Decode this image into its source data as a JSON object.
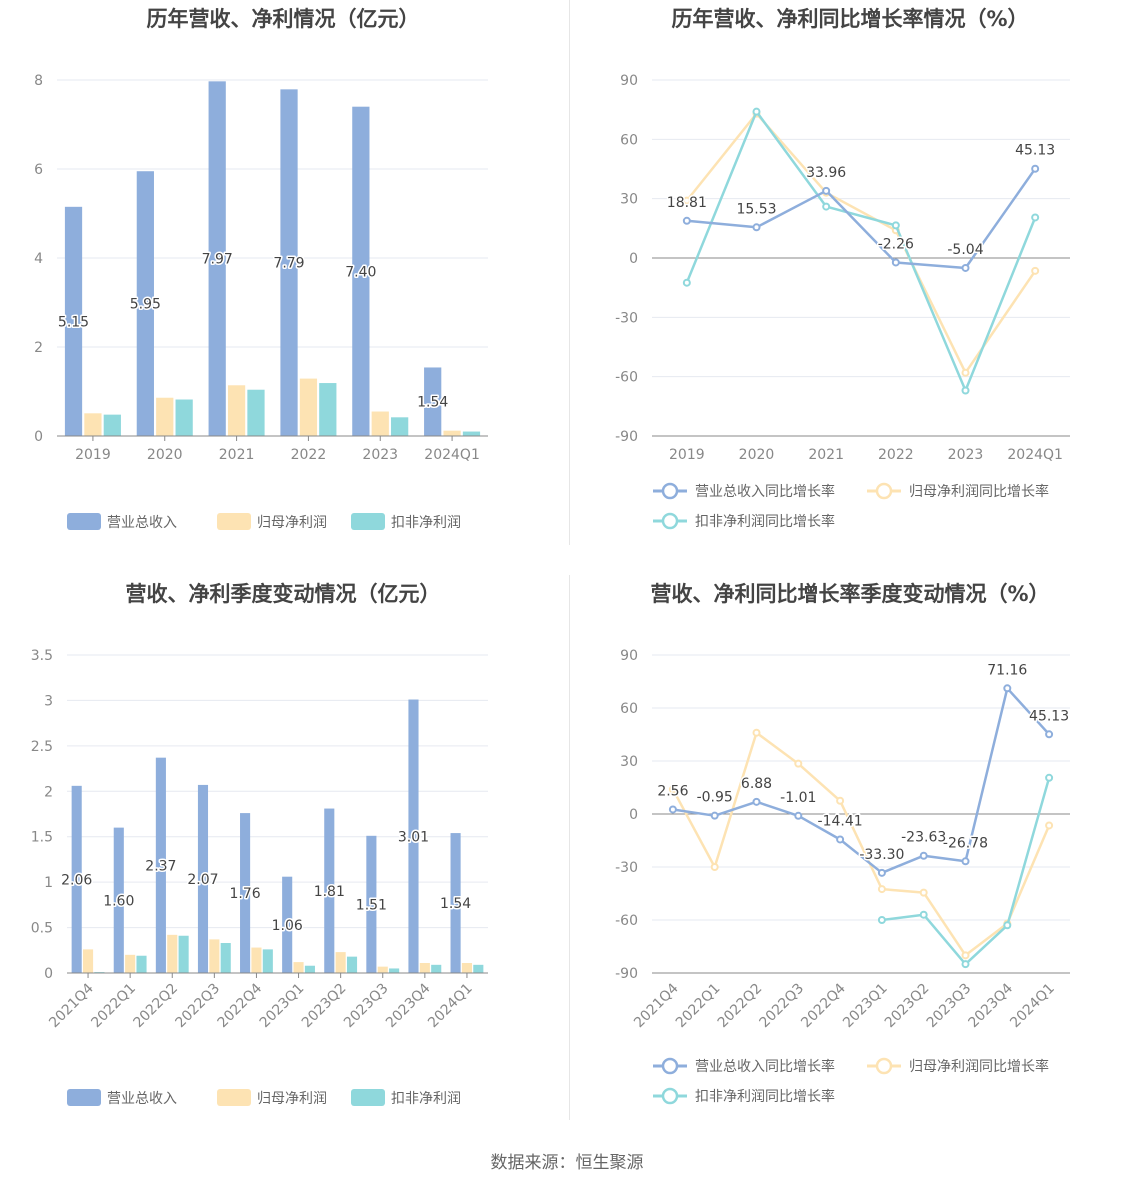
{
  "footer": "数据来源：恒生聚源",
  "colors": {
    "revenue": "#8eaedc",
    "net_profit": "#fde3b3",
    "deducted": "#8fd8dc",
    "grid": "#e6e9f0",
    "axis": "#888888"
  },
  "chart_data": [
    {
      "id": "annual-bar",
      "type": "bar",
      "title": "历年营收、净利情况（亿元）",
      "categories": [
        "2019",
        "2020",
        "2021",
        "2022",
        "2023",
        "2024Q1"
      ],
      "yticks": [
        "0",
        "2",
        "4",
        "6",
        "8"
      ],
      "ylim": [
        0,
        8
      ],
      "grid": true,
      "legend_position": "bottom",
      "series": [
        {
          "name": "营业总收入",
          "values": [
            5.15,
            5.95,
            7.97,
            7.79,
            7.4,
            1.54
          ],
          "labels": [
            "5.15",
            "5.95",
            "7.97",
            "7.79",
            "7.40",
            "1.54"
          ]
        },
        {
          "name": "归母净利润",
          "values": [
            0.51,
            0.86,
            1.14,
            1.29,
            0.55,
            0.12
          ]
        },
        {
          "name": "扣非净利润",
          "values": [
            0.48,
            0.82,
            1.04,
            1.19,
            0.42,
            0.1
          ]
        }
      ]
    },
    {
      "id": "annual-line",
      "type": "line",
      "title": "历年营收、净利同比增长率情况（%）",
      "categories": [
        "2019",
        "2020",
        "2021",
        "2022",
        "2023",
        "2024Q1"
      ],
      "yticks": [
        "-90",
        "-60",
        "-30",
        "0",
        "30",
        "60",
        "90"
      ],
      "ylim": [
        -90,
        90
      ],
      "grid": true,
      "legend_position": "bottom",
      "series": [
        {
          "name": "营业总收入同比增长率",
          "values": [
            18.81,
            15.53,
            33.96,
            -2.26,
            -5.04,
            45.13
          ],
          "labels": [
            "18.81",
            "15.53",
            "33.96",
            "-2.26",
            "-5.04",
            "45.13"
          ]
        },
        {
          "name": "归母净利润同比增长率",
          "values": [
            29.0,
            73.0,
            33.0,
            14.0,
            -58.0,
            -6.5
          ]
        },
        {
          "name": "扣非净利润同比增长率",
          "values": [
            -12.5,
            74.0,
            26.0,
            16.5,
            -67.0,
            20.5
          ]
        }
      ]
    },
    {
      "id": "quarterly-bar",
      "type": "bar",
      "title": "营收、净利季度变动情况（亿元）",
      "categories": [
        "2021Q4",
        "2022Q1",
        "2022Q2",
        "2022Q3",
        "2022Q4",
        "2023Q1",
        "2023Q2",
        "2023Q3",
        "2023Q4",
        "2024Q1"
      ],
      "yticks": [
        "0",
        "0.5",
        "1",
        "1.5",
        "2",
        "2.5",
        "3",
        "3.5"
      ],
      "ylim": [
        0,
        3.5
      ],
      "grid": true,
      "legend_position": "bottom",
      "series": [
        {
          "name": "营业总收入",
          "values": [
            2.06,
            1.6,
            2.37,
            2.07,
            1.76,
            1.06,
            1.81,
            1.51,
            3.01,
            1.54
          ],
          "labels": [
            "2.06",
            "1.60",
            "2.37",
            "2.07",
            "1.76",
            "1.06",
            "1.81",
            "1.51",
            "3.01",
            "1.54"
          ]
        },
        {
          "name": "归母净利润",
          "values": [
            0.26,
            0.2,
            0.42,
            0.37,
            0.28,
            0.12,
            0.23,
            0.07,
            0.11,
            0.11
          ]
        },
        {
          "name": "扣非净利润",
          "values": [
            0.01,
            0.19,
            0.41,
            0.33,
            0.26,
            0.08,
            0.18,
            0.05,
            0.09,
            0.09
          ]
        }
      ]
    },
    {
      "id": "quarterly-line",
      "type": "line",
      "title": "营收、净利同比增长率季度变动情况（%）",
      "categories": [
        "2021Q4",
        "2022Q1",
        "2022Q2",
        "2022Q3",
        "2022Q4",
        "2023Q1",
        "2023Q2",
        "2023Q3",
        "2023Q4",
        "2024Q1"
      ],
      "yticks": [
        "-90",
        "-60",
        "-30",
        "0",
        "30",
        "60",
        "90"
      ],
      "ylim": [
        -90,
        90
      ],
      "grid": true,
      "legend_position": "bottom",
      "series": [
        {
          "name": "营业总收入同比增长率",
          "values": [
            2.56,
            -0.95,
            6.88,
            -1.01,
            -14.41,
            -33.3,
            -23.63,
            -26.78,
            71.16,
            45.13
          ],
          "labels": [
            "2.56",
            "-0.95",
            "6.88",
            "-1.01",
            "-14.41",
            "-33.30",
            "-23.63",
            "-26.78",
            "71.16",
            "45.13"
          ]
        },
        {
          "name": "归母净利润同比增长率",
          "values": [
            14.0,
            -30.0,
            46.0,
            28.5,
            7.5,
            -42.5,
            -44.5,
            -80.0,
            -62.0,
            -6.5
          ]
        },
        {
          "name": "扣非净利润同比增长率",
          "values": [
            null,
            null,
            null,
            null,
            null,
            -60.0,
            -57.0,
            -85.0,
            -63.0,
            20.5
          ]
        }
      ]
    }
  ]
}
